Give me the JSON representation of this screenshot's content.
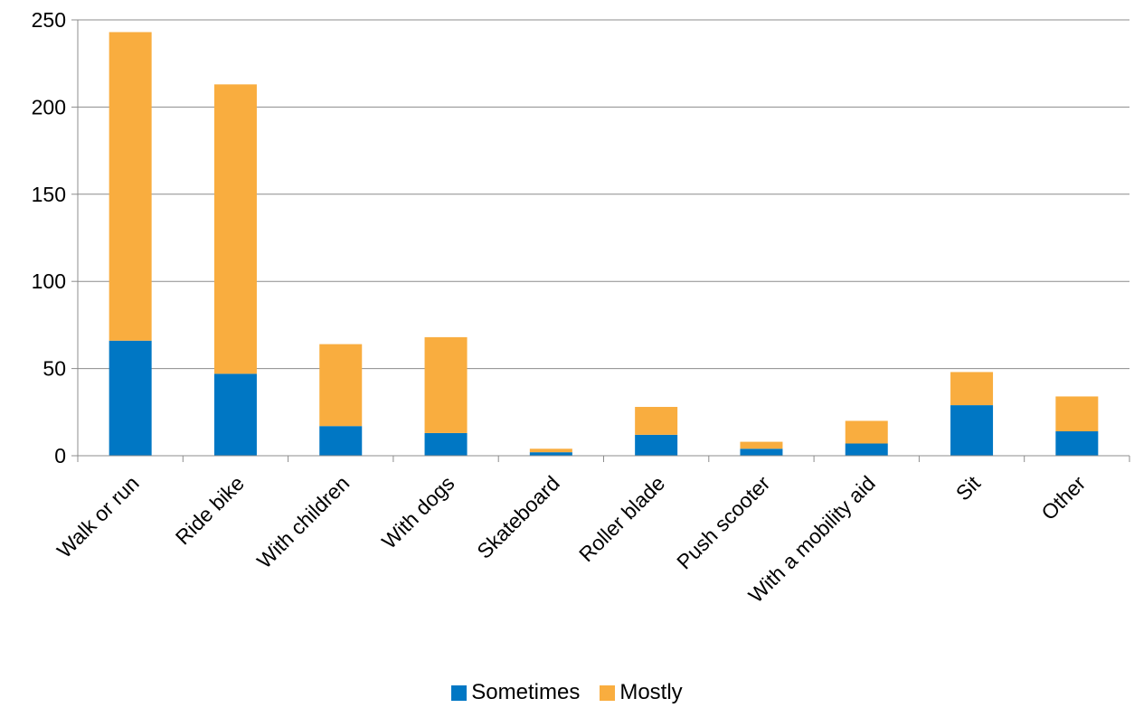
{
  "chart_data": {
    "type": "bar",
    "stacked": true,
    "title": "",
    "xlabel": "",
    "ylabel": "",
    "ylim": [
      0,
      250
    ],
    "y_ticks": [
      0,
      50,
      100,
      150,
      200,
      250
    ],
    "grid": true,
    "legend_position": "bottom",
    "categories": [
      "Walk or run",
      "Ride bike",
      "With children",
      "With dogs",
      "Skateboard",
      "Roller blade",
      "Push scooter",
      "With a mobility aid",
      "Sit",
      "Other"
    ],
    "series": [
      {
        "name": "Sometimes",
        "color": "#0077C4",
        "values": [
          66,
          47,
          17,
          13,
          2,
          12,
          4,
          7,
          29,
          14
        ]
      },
      {
        "name": "Mostly",
        "color": "#F9AD3F",
        "values": [
          177,
          166,
          47,
          55,
          2,
          16,
          4,
          13,
          19,
          20
        ]
      }
    ]
  }
}
